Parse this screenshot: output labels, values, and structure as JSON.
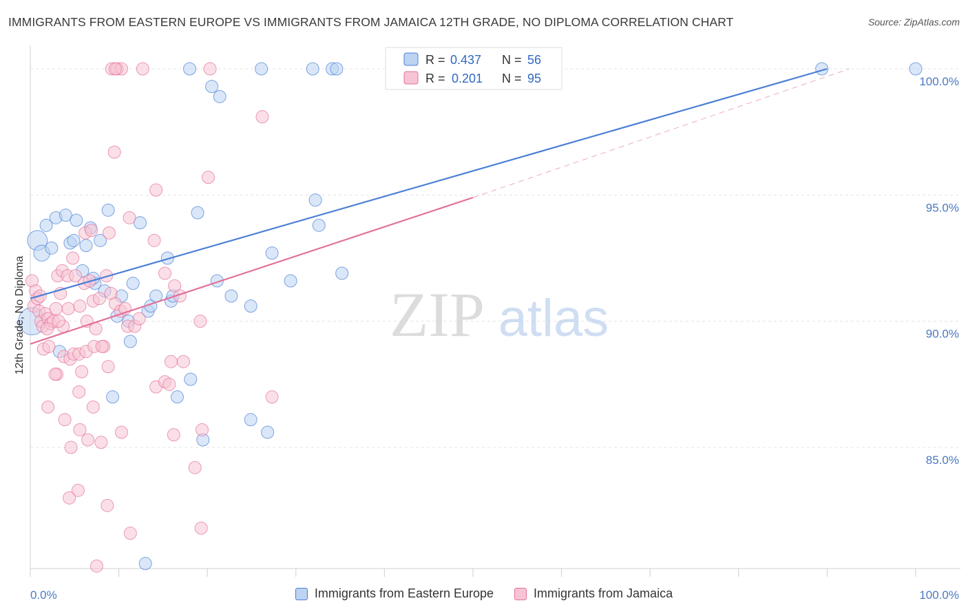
{
  "header": {
    "title": "IMMIGRANTS FROM EASTERN EUROPE VS IMMIGRANTS FROM JAMAICA 12TH GRADE, NO DIPLOMA CORRELATION CHART",
    "source": "Source: ZipAtlas.com"
  },
  "watermark": {
    "zip": "ZIP",
    "atlas": "atlas"
  },
  "colors": {
    "blue": "#4a7fd6",
    "blue_fill": "#bcd3f2",
    "pink": "#e2709a",
    "pink_fill": "#f7c4d4",
    "tick_label": "#4a78c2"
  },
  "chart_data": {
    "type": "scatter",
    "ylabel": "12th Grade, No Diploma",
    "xlim": [
      0,
      100
    ],
    "ylim": [
      80.2,
      100.6
    ],
    "x_tick_labels": [
      "0.0%",
      "100.0%"
    ],
    "y_ticks": [
      85,
      90,
      95,
      100
    ],
    "y_tick_labels": [
      "85.0%",
      "90.0%",
      "95.0%",
      "100.0%"
    ],
    "grid": true,
    "legend": {
      "position": "top-center",
      "entries": [
        {
          "r_label": "R =",
          "r_value": "0.437",
          "n_label": "N =",
          "n_value": "56"
        },
        {
          "r_label": "R =",
          "r_value": "0.201",
          "n_label": "N =",
          "n_value": "95"
        }
      ]
    },
    "series": [
      {
        "name": "Immigrants from Eastern Europe",
        "color": "#4a7fd6",
        "trend": {
          "x": [
            0,
            90
          ],
          "y": [
            90.9,
            100.0
          ]
        },
        "points": [
          {
            "x": 0.2,
            "y": 90.0,
            "s": 2.2
          },
          {
            "x": 0.8,
            "y": 93.2,
            "s": 1.6
          },
          {
            "x": 1.3,
            "y": 92.7,
            "s": 1.3
          },
          {
            "x": 1.8,
            "y": 93.8
          },
          {
            "x": 2.4,
            "y": 92.9
          },
          {
            "x": 2.9,
            "y": 94.1
          },
          {
            "x": 4.0,
            "y": 94.2
          },
          {
            "x": 5.2,
            "y": 94.0
          },
          {
            "x": 4.5,
            "y": 93.1
          },
          {
            "x": 4.9,
            "y": 93.2
          },
          {
            "x": 6.3,
            "y": 93.0
          },
          {
            "x": 6.8,
            "y": 93.7
          },
          {
            "x": 7.9,
            "y": 93.2
          },
          {
            "x": 8.8,
            "y": 94.4
          },
          {
            "x": 12.4,
            "y": 93.9
          },
          {
            "x": 5.9,
            "y": 92.0
          },
          {
            "x": 7.3,
            "y": 91.5
          },
          {
            "x": 8.4,
            "y": 91.2
          },
          {
            "x": 10.3,
            "y": 91.0
          },
          {
            "x": 11.6,
            "y": 91.5
          },
          {
            "x": 9.8,
            "y": 90.2
          },
          {
            "x": 11.1,
            "y": 90.0
          },
          {
            "x": 13.3,
            "y": 90.4
          },
          {
            "x": 13.6,
            "y": 90.6
          },
          {
            "x": 14.2,
            "y": 91.0
          },
          {
            "x": 15.9,
            "y": 90.8
          },
          {
            "x": 16.1,
            "y": 91.0
          },
          {
            "x": 15.5,
            "y": 92.5
          },
          {
            "x": 18.9,
            "y": 94.3
          },
          {
            "x": 21.1,
            "y": 91.6
          },
          {
            "x": 22.7,
            "y": 91.0
          },
          {
            "x": 24.9,
            "y": 90.6
          },
          {
            "x": 27.3,
            "y": 92.7
          },
          {
            "x": 29.4,
            "y": 91.6
          },
          {
            "x": 32.2,
            "y": 94.8
          },
          {
            "x": 32.6,
            "y": 93.8
          },
          {
            "x": 35.2,
            "y": 91.9
          },
          {
            "x": 3.3,
            "y": 88.8
          },
          {
            "x": 11.3,
            "y": 89.2
          },
          {
            "x": 9.3,
            "y": 87.0
          },
          {
            "x": 18.1,
            "y": 87.7
          },
          {
            "x": 16.6,
            "y": 87.0
          },
          {
            "x": 24.9,
            "y": 86.1
          },
          {
            "x": 26.8,
            "y": 85.6
          },
          {
            "x": 19.5,
            "y": 85.3
          },
          {
            "x": 13.0,
            "y": 80.4
          },
          {
            "x": 18.0,
            "y": 100.0
          },
          {
            "x": 26.1,
            "y": 100.0
          },
          {
            "x": 31.9,
            "y": 100.0
          },
          {
            "x": 34.1,
            "y": 100.0
          },
          {
            "x": 34.6,
            "y": 100.0
          },
          {
            "x": 20.5,
            "y": 99.3
          },
          {
            "x": 21.4,
            "y": 98.9
          },
          {
            "x": 89.4,
            "y": 100.0
          },
          {
            "x": 100.0,
            "y": 100.0
          },
          {
            "x": 7.1,
            "y": 91.7
          }
        ]
      },
      {
        "name": "Immigrants from Jamaica",
        "color": "#e2709a",
        "trend": {
          "x": [
            0,
            50
          ],
          "y": [
            89.1,
            94.9
          ]
        },
        "trend_dashed": {
          "x": [
            50,
            92.5
          ],
          "y": [
            94.9,
            100.0
          ]
        },
        "points": [
          {
            "x": 0.2,
            "y": 91.6
          },
          {
            "x": 0.4,
            "y": 90.6
          },
          {
            "x": 0.6,
            "y": 91.2
          },
          {
            "x": 0.8,
            "y": 90.9
          },
          {
            "x": 1.0,
            "y": 90.4
          },
          {
            "x": 1.2,
            "y": 90.0
          },
          {
            "x": 1.4,
            "y": 89.8
          },
          {
            "x": 1.7,
            "y": 90.3
          },
          {
            "x": 2.0,
            "y": 90.1
          },
          {
            "x": 2.3,
            "y": 89.9
          },
          {
            "x": 2.6,
            "y": 90.0
          },
          {
            "x": 1.9,
            "y": 89.7
          },
          {
            "x": 1.5,
            "y": 88.9
          },
          {
            "x": 2.1,
            "y": 89.0
          },
          {
            "x": 2.9,
            "y": 90.5
          },
          {
            "x": 3.4,
            "y": 91.1
          },
          {
            "x": 3.7,
            "y": 89.8
          },
          {
            "x": 4.3,
            "y": 90.5
          },
          {
            "x": 3.8,
            "y": 88.6
          },
          {
            "x": 4.5,
            "y": 88.5
          },
          {
            "x": 3.1,
            "y": 91.8
          },
          {
            "x": 3.6,
            "y": 92.0
          },
          {
            "x": 4.2,
            "y": 91.8
          },
          {
            "x": 4.8,
            "y": 92.5
          },
          {
            "x": 5.1,
            "y": 91.8
          },
          {
            "x": 5.6,
            "y": 90.6
          },
          {
            "x": 6.1,
            "y": 91.5
          },
          {
            "x": 6.4,
            "y": 90.0
          },
          {
            "x": 6.7,
            "y": 91.6
          },
          {
            "x": 7.1,
            "y": 90.8
          },
          {
            "x": 7.4,
            "y": 89.7
          },
          {
            "x": 7.8,
            "y": 90.9
          },
          {
            "x": 8.3,
            "y": 89.0
          },
          {
            "x": 8.6,
            "y": 91.8
          },
          {
            "x": 9.1,
            "y": 91.1
          },
          {
            "x": 9.6,
            "y": 90.7
          },
          {
            "x": 10.2,
            "y": 90.4
          },
          {
            "x": 10.7,
            "y": 90.5
          },
          {
            "x": 11.0,
            "y": 89.8
          },
          {
            "x": 11.8,
            "y": 89.8
          },
          {
            "x": 12.3,
            "y": 90.1
          },
          {
            "x": 6.2,
            "y": 93.5
          },
          {
            "x": 6.9,
            "y": 93.6
          },
          {
            "x": 8.9,
            "y": 93.5
          },
          {
            "x": 11.2,
            "y": 94.1
          },
          {
            "x": 14.0,
            "y": 93.2
          },
          {
            "x": 15.2,
            "y": 91.9
          },
          {
            "x": 16.3,
            "y": 91.4
          },
          {
            "x": 16.9,
            "y": 91.0
          },
          {
            "x": 19.2,
            "y": 90.0
          },
          {
            "x": 4.9,
            "y": 88.7
          },
          {
            "x": 5.5,
            "y": 88.7
          },
          {
            "x": 6.3,
            "y": 88.8
          },
          {
            "x": 7.2,
            "y": 89.0
          },
          {
            "x": 8.1,
            "y": 89.0
          },
          {
            "x": 3.0,
            "y": 87.9
          },
          {
            "x": 2.8,
            "y": 87.9
          },
          {
            "x": 5.8,
            "y": 88.0
          },
          {
            "x": 8.8,
            "y": 88.2
          },
          {
            "x": 14.2,
            "y": 87.4
          },
          {
            "x": 15.2,
            "y": 87.6
          },
          {
            "x": 15.7,
            "y": 87.5
          },
          {
            "x": 15.9,
            "y": 88.4
          },
          {
            "x": 17.3,
            "y": 88.4
          },
          {
            "x": 27.3,
            "y": 87.0
          },
          {
            "x": 2.0,
            "y": 86.6
          },
          {
            "x": 3.9,
            "y": 86.1
          },
          {
            "x": 5.5,
            "y": 87.2
          },
          {
            "x": 7.1,
            "y": 86.6
          },
          {
            "x": 5.6,
            "y": 85.7
          },
          {
            "x": 6.5,
            "y": 85.3
          },
          {
            "x": 8.0,
            "y": 85.2
          },
          {
            "x": 10.3,
            "y": 85.6
          },
          {
            "x": 16.2,
            "y": 85.5
          },
          {
            "x": 19.4,
            "y": 85.7
          },
          {
            "x": 4.6,
            "y": 85.0
          },
          {
            "x": 18.6,
            "y": 84.2
          },
          {
            "x": 5.4,
            "y": 83.3
          },
          {
            "x": 4.4,
            "y": 83.0
          },
          {
            "x": 8.7,
            "y": 82.7
          },
          {
            "x": 11.3,
            "y": 81.6
          },
          {
            "x": 19.3,
            "y": 81.8
          },
          {
            "x": 7.5,
            "y": 80.3
          },
          {
            "x": 9.5,
            "y": 96.7
          },
          {
            "x": 14.2,
            "y": 95.2
          },
          {
            "x": 20.1,
            "y": 95.7
          },
          {
            "x": 26.2,
            "y": 98.1
          },
          {
            "x": 9.2,
            "y": 100.0
          },
          {
            "x": 9.8,
            "y": 100.0
          },
          {
            "x": 10.3,
            "y": 100.0
          },
          {
            "x": 12.7,
            "y": 100.0
          },
          {
            "x": 20.3,
            "y": 100.0
          },
          {
            "x": 9.6,
            "y": 100.0
          },
          {
            "x": 3.2,
            "y": 90.0
          },
          {
            "x": 1.1,
            "y": 91.0
          }
        ]
      }
    ]
  }
}
